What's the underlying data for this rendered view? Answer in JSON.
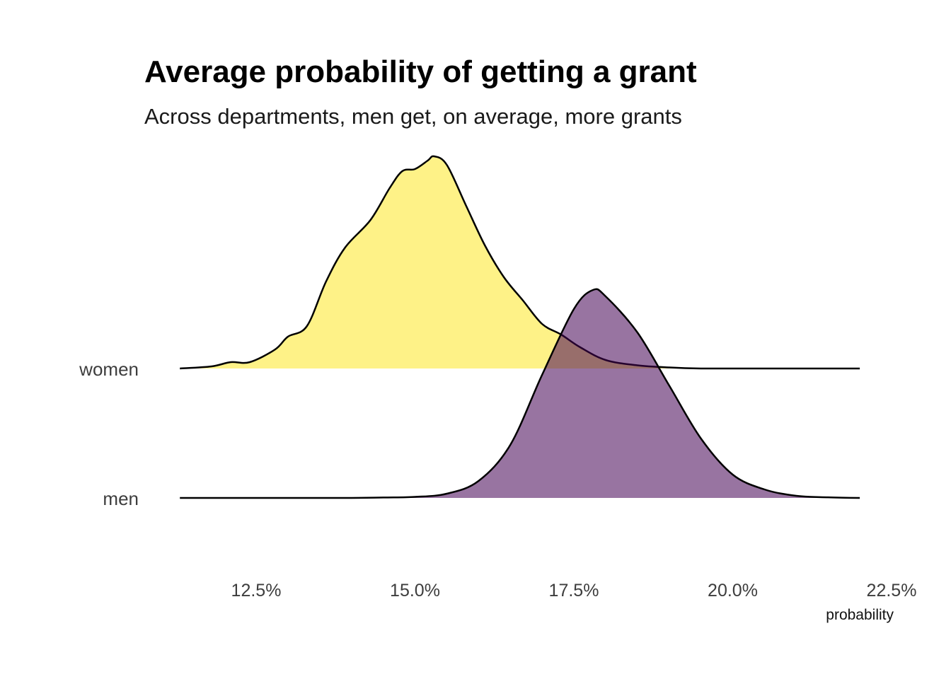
{
  "chart_data": {
    "type": "area",
    "title": "Average probability of getting a grant",
    "subtitle": "Across departments, men get, on average, more grants",
    "xlabel": "probability",
    "ylabel": "",
    "xlim": [
      11.3,
      22.0
    ],
    "x_ticks": [
      12.5,
      15.0,
      17.5,
      20.0,
      22.5
    ],
    "x_tick_labels": [
      "12.5%",
      "15.0%",
      "17.5%",
      "20.0%",
      "22.5%"
    ],
    "categories": [
      "women",
      "men"
    ],
    "series": [
      {
        "name": "women",
        "color": "#fde725",
        "x": [
          11.3,
          11.8,
          12.1,
          12.4,
          12.8,
          13.0,
          13.3,
          13.6,
          13.9,
          14.3,
          14.6,
          14.8,
          15.0,
          15.2,
          15.3,
          15.5,
          15.8,
          16.1,
          16.4,
          16.7,
          17.0,
          17.3,
          17.6,
          18.0,
          18.5,
          19.0,
          19.5,
          20.0,
          21.0,
          22.0
        ],
        "values": [
          0.0,
          0.01,
          0.03,
          0.03,
          0.09,
          0.15,
          0.2,
          0.41,
          0.57,
          0.7,
          0.85,
          0.93,
          0.94,
          0.98,
          1.0,
          0.96,
          0.77,
          0.58,
          0.43,
          0.32,
          0.21,
          0.16,
          0.1,
          0.04,
          0.015,
          0.005,
          0.0,
          0.0,
          0.0,
          0.0
        ]
      },
      {
        "name": "men",
        "color": "#440154",
        "x": [
          11.3,
          13.0,
          14.0,
          14.5,
          15.0,
          15.5,
          16.0,
          16.5,
          17.0,
          17.5,
          17.8,
          18.0,
          18.5,
          19.0,
          19.5,
          20.0,
          20.5,
          21.0,
          21.5,
          22.0
        ],
        "values": [
          0.0,
          0.0,
          0.0,
          0.002,
          0.005,
          0.02,
          0.08,
          0.25,
          0.58,
          0.89,
          0.98,
          0.95,
          0.78,
          0.53,
          0.28,
          0.11,
          0.04,
          0.01,
          0.003,
          0.0
        ]
      }
    ],
    "grid": false,
    "legend": "none"
  }
}
